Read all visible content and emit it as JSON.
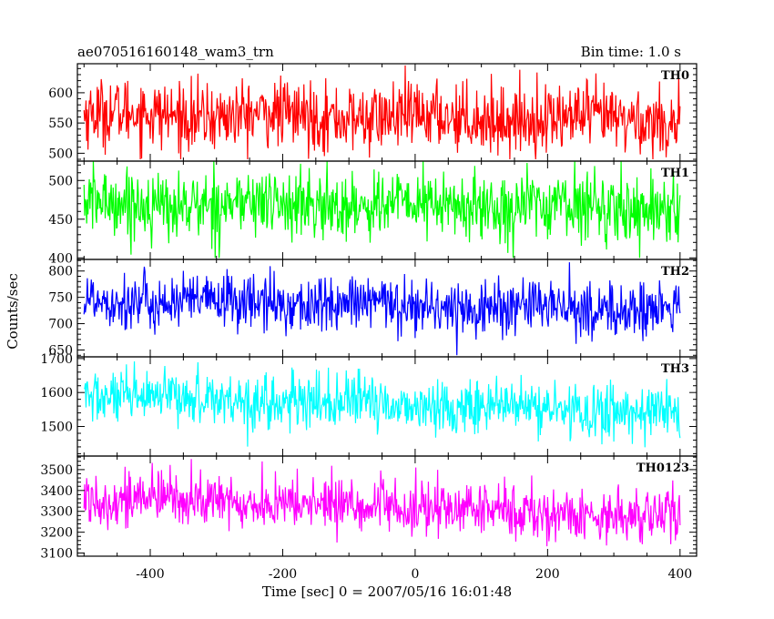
{
  "header": {
    "left_title": "ae070516160148_wam3_trn",
    "right_title": "Bin time: 1.0 s"
  },
  "chart_data": {
    "type": "line",
    "title": "ae070516160148_wam3_trn",
    "subtitle": "Bin time: 1.0 s",
    "xlabel": "Time [sec] 0 = 2007/05/16 16:01:48",
    "ylabel": "Counts/sec",
    "xlim": [
      -510,
      425
    ],
    "x_data_range": [
      -500,
      400
    ],
    "bin_time_s": 1.0,
    "xticks": [
      -400,
      -200,
      0,
      200,
      400
    ],
    "grid": false,
    "legend": "none",
    "panels": [
      {
        "name": "TH0",
        "color": "#ff0000",
        "ylim": [
          487,
          648
        ],
        "yticks": [
          500,
          550,
          600
        ],
        "mean_start": 565,
        "mean_end": 555,
        "noise_sd": 28,
        "min": 490,
        "max": 648
      },
      {
        "name": "TH1",
        "color": "#00ff00",
        "ylim": [
          398,
          525
        ],
        "yticks": [
          400,
          450,
          500
        ],
        "mean_start": 470,
        "mean_end": 466,
        "noise_sd": 22,
        "min": 400,
        "max": 525
      },
      {
        "name": "TH2",
        "color": "#0000ff",
        "ylim": [
          637,
          822
        ],
        "yticks": [
          650,
          700,
          750,
          800
        ],
        "mean_start": 745,
        "mean_end": 725,
        "noise_sd": 27,
        "min": 640,
        "max": 822
      },
      {
        "name": "TH3",
        "color": "#00ffff",
        "ylim": [
          1413,
          1705
        ],
        "yticks": [
          1500,
          1600,
          1700
        ],
        "mean_start": 1590,
        "mean_end": 1540,
        "noise_sd": 40,
        "min": 1420,
        "max": 1705
      },
      {
        "name": "TH0123",
        "color": "#ff00ff",
        "ylim": [
          3085,
          3565
        ],
        "yticks": [
          3100,
          3200,
          3300,
          3400,
          3500
        ],
        "mean_start": 3370,
        "mean_end": 3270,
        "noise_sd": 65,
        "min": 3090,
        "max": 3565
      }
    ]
  }
}
